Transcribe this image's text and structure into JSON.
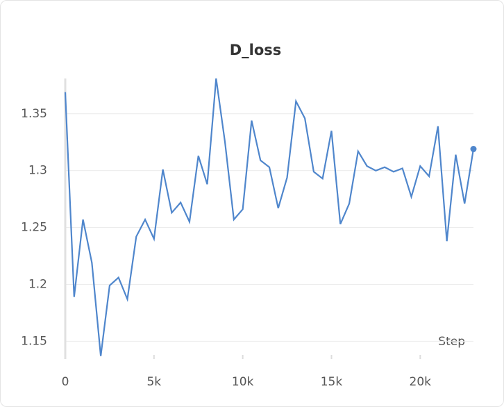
{
  "chart_data": {
    "type": "line",
    "title": "D_loss",
    "xlabel": "Step",
    "x": [
      0,
      500,
      1000,
      1500,
      2000,
      2500,
      3000,
      3500,
      4000,
      4500,
      5000,
      5500,
      6000,
      6500,
      7000,
      7500,
      8000,
      8500,
      9000,
      9500,
      10000,
      10500,
      11000,
      11500,
      12000,
      12500,
      13000,
      13500,
      14000,
      14500,
      15000,
      15500,
      16000,
      16500,
      17000,
      17500,
      18000,
      18500,
      19000,
      19500,
      20000,
      20500,
      21000,
      21500,
      22000,
      22500,
      23000
    ],
    "series": [
      {
        "name": "D_loss",
        "color": "#4f86cc",
        "values": [
          1.369,
          1.189,
          1.257,
          1.219,
          1.137,
          1.199,
          1.206,
          1.187,
          1.242,
          1.257,
          1.24,
          1.301,
          1.263,
          1.272,
          1.255,
          1.313,
          1.288,
          1.381,
          1.325,
          1.257,
          1.266,
          1.344,
          1.309,
          1.303,
          1.267,
          1.294,
          1.361,
          1.346,
          1.299,
          1.293,
          1.335,
          1.253,
          1.271,
          1.317,
          1.304,
          1.3,
          1.303,
          1.299,
          1.302,
          1.277,
          1.304,
          1.295,
          1.339,
          1.238,
          1.314,
          1.271,
          1.319
        ]
      }
    ],
    "xlim": [
      0,
      23000
    ],
    "ylim": [
      1.138,
      1.381
    ],
    "xticks": [
      0,
      {
        "value": 5000,
        "label": "5k"
      },
      {
        "value": 10000,
        "label": "10k"
      },
      {
        "value": 15000,
        "label": "15k"
      },
      {
        "value": 20000,
        "label": "20k"
      }
    ],
    "yticks": [
      1.15,
      1.2,
      1.25,
      1.3,
      1.35
    ],
    "grid": true
  }
}
